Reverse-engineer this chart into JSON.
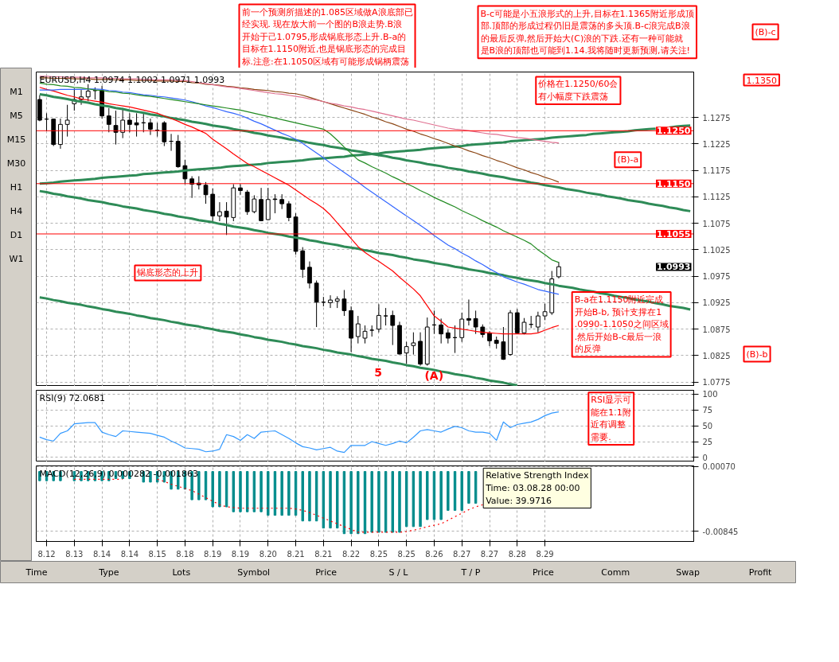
{
  "chart_data": [
    {
      "type": "other",
      "annotations": [
        "前一个预测所描述的1.085区域做A浪底部已经实现. 现在放大前一个图的B浪走势.B浪开始于己1.0795,形成锅底形态上升.B-a的目标在1.1150附近,也是锅底形态的完成目标.注意:在1.1050区域有可能形成锅柄震荡",
        "B-c可能是小五浪形式的上升,目标在1.1365附近形成顶部.顶部的形成过程仍旧是震荡的多头顶.B-c浪完成B浪的最后反弹,然后开始大(C)浪的下跌.还有一种可能就是B浪的顶部也可能到1.14.我将随时更新预测,请关注!",
        "(B)-c"
      ]
    },
    {
      "type": "other",
      "annotations": [
        "M1",
        "M5",
        "M15",
        "M30",
        "H1",
        "H4",
        "D1",
        "W1"
      ]
    },
    {
      "type": "candlestick",
      "title": "EURUSD,H4  1.0974 1.1002 1.0971 1.0993",
      "categories": [
        null,
        "8.12",
        null,
        null,
        null,
        "8.13",
        null,
        null,
        null,
        "8.14",
        null,
        null,
        null,
        "8.14",
        null,
        null,
        null,
        "8.15",
        null,
        null,
        null,
        "8.18",
        null,
        null,
        null,
        "8.19",
        null,
        null,
        null,
        "8.19",
        null,
        null,
        null,
        "8.20",
        null,
        null,
        null,
        "8.21",
        null,
        null,
        null,
        "8.21",
        null,
        null,
        null,
        "8.22",
        null,
        null,
        null,
        "8.25",
        null,
        null,
        null,
        "8.25",
        null,
        null,
        null,
        "8.26",
        null,
        null,
        null,
        "8.27",
        null,
        null,
        null,
        "8.27",
        null,
        null,
        null,
        "8.28",
        null,
        null,
        null,
        "8.29",
        null,
        null,
        null,
        null,
        null,
        null,
        null,
        null,
        null,
        null,
        null,
        null,
        null,
        null,
        null,
        null,
        null,
        null,
        null,
        null,
        null
      ],
      "ohlc": [
        [
          1.1309,
          1.1317,
          1.1268,
          1.127
        ],
        [
          1.1272,
          1.1283,
          1.1249,
          1.1272
        ],
        [
          1.1272,
          1.1272,
          1.1221,
          1.1224
        ],
        [
          1.1224,
          1.1273,
          1.1216,
          1.1262
        ],
        [
          1.1262,
          1.1299,
          1.1239,
          1.127
        ],
        [
          1.1301,
          1.133,
          1.1288,
          1.1309
        ],
        [
          1.1309,
          1.1327,
          1.1299,
          1.1314
        ],
        [
          1.1314,
          1.1338,
          1.1306,
          1.1325
        ],
        [
          1.1326,
          1.1332,
          1.1309,
          1.1326
        ],
        [
          1.1326,
          1.1335,
          1.1273,
          1.1278
        ],
        [
          1.1278,
          1.1293,
          1.1247,
          1.1262
        ],
        [
          1.126,
          1.1288,
          1.1224,
          1.1247
        ],
        [
          1.1247,
          1.1293,
          1.1236,
          1.127
        ],
        [
          1.127,
          1.1283,
          1.1247,
          1.1262
        ],
        [
          1.1265,
          1.1283,
          1.1239,
          1.1261
        ],
        [
          1.1265,
          1.1283,
          1.1247,
          1.1265
        ],
        [
          1.1265,
          1.1273,
          1.1242,
          1.1253
        ],
        [
          1.1251,
          1.1265,
          1.1239,
          1.1251
        ],
        [
          1.1265,
          1.1268,
          1.1221,
          1.1229
        ],
        [
          1.123,
          1.1244,
          1.1212,
          1.123
        ],
        [
          1.123,
          1.1242,
          1.118,
          1.1182
        ],
        [
          1.1184,
          1.1195,
          1.1149,
          1.1159
        ],
        [
          1.1159,
          1.1164,
          1.1123,
          1.1149
        ],
        [
          1.1151,
          1.1164,
          1.1139,
          1.1148
        ],
        [
          1.1147,
          1.1153,
          1.1112,
          1.1129
        ],
        [
          1.113,
          1.1141,
          1.1076,
          1.1089
        ],
        [
          1.1089,
          1.1115,
          1.1079,
          1.1097
        ],
        [
          1.1098,
          1.1115,
          1.1053,
          1.1087
        ],
        [
          1.1086,
          1.1149,
          1.1079,
          1.1142
        ],
        [
          1.1142,
          1.1149,
          1.1129,
          1.1137
        ],
        [
          1.1134,
          1.1138,
          1.1091,
          1.1097
        ],
        [
          1.1097,
          1.1128,
          1.1094,
          1.1121
        ],
        [
          1.112,
          1.1142,
          1.1079,
          1.108
        ],
        [
          1.1082,
          1.1142,
          1.1081,
          1.112
        ],
        [
          1.1121,
          1.113,
          1.1094,
          1.112
        ],
        [
          1.112,
          1.113,
          1.1102,
          1.1112
        ],
        [
          1.1112,
          1.1117,
          1.1079,
          1.1086
        ],
        [
          1.1087,
          1.1094,
          1.1016,
          1.1022
        ],
        [
          1.1023,
          1.103,
          1.0972,
          1.0988
        ],
        [
          1.0992,
          1.1003,
          1.0952,
          1.0962
        ],
        [
          1.0962,
          1.0967,
          1.0879,
          1.0926
        ],
        [
          1.0926,
          1.0936,
          1.0918,
          1.0926
        ],
        [
          1.0925,
          1.0939,
          1.0915,
          1.093
        ],
        [
          1.0928,
          1.0937,
          1.0915,
          1.0932
        ],
        [
          1.0932,
          1.0949,
          1.09,
          1.091
        ],
        [
          1.091,
          1.0918,
          1.0832,
          1.0858
        ],
        [
          1.0861,
          1.09,
          1.0848,
          1.0885
        ],
        [
          1.0858,
          1.0882,
          1.0848,
          1.0871
        ],
        [
          1.0873,
          1.0882,
          1.0861,
          1.0873
        ],
        [
          1.0875,
          1.0922,
          1.0869,
          1.0901
        ],
        [
          1.09,
          1.0915,
          1.0882,
          1.09
        ],
        [
          1.0901,
          1.091,
          1.0845,
          1.0882
        ],
        [
          1.0882,
          1.0889,
          1.0827,
          1.0828
        ],
        [
          1.083,
          1.0851,
          1.0809,
          1.0842
        ],
        [
          1.0844,
          1.0869,
          1.0827,
          1.0849
        ],
        [
          1.0852,
          1.0869,
          1.0806,
          1.0809
        ],
        [
          1.0809,
          1.0897,
          1.0806,
          1.0879
        ],
        [
          1.0883,
          1.091,
          1.0866,
          1.0883
        ],
        [
          1.0883,
          1.0895,
          1.0848,
          1.0866
        ],
        [
          1.0868,
          1.0874,
          1.0848,
          1.0858
        ],
        [
          1.0859,
          1.0882,
          1.083,
          1.0859
        ],
        [
          1.0859,
          1.0906,
          1.0851,
          1.0894
        ],
        [
          1.0895,
          1.0931,
          1.0882,
          1.0892
        ],
        [
          1.0895,
          1.091,
          1.0866,
          1.0879
        ],
        [
          1.0879,
          1.0884,
          1.0859,
          1.0865
        ],
        [
          1.0868,
          1.0871,
          1.0843,
          1.0853
        ],
        [
          1.0854,
          1.0861,
          1.0838,
          1.0848
        ],
        [
          1.0851,
          1.0879,
          1.0817,
          1.0818
        ],
        [
          1.0827,
          1.0911,
          1.0825,
          1.0906
        ],
        [
          1.0906,
          1.0913,
          1.0866,
          1.0868
        ],
        [
          1.0868,
          1.0896,
          1.0865,
          1.0888
        ],
        [
          1.0884,
          1.09,
          1.0877,
          1.0884
        ],
        [
          1.0879,
          1.0908,
          1.0869,
          1.09
        ],
        [
          1.09,
          1.0923,
          1.0892,
          1.0908
        ],
        [
          1.0906,
          1.0985,
          1.0902,
          1.097
        ],
        [
          1.0974,
          1.1002,
          1.0971,
          1.0993
        ],
        null,
        null,
        null,
        null,
        null,
        null,
        null,
        null,
        null,
        null,
        null,
        null,
        null,
        null,
        null,
        null,
        null,
        null,
        null
      ],
      "ylim": [
        1.0767,
        1.1361
      ],
      "yticks": [
        1.0775,
        1.0825,
        1.0875,
        1.0925,
        1.0975,
        1.1025,
        1.1075,
        1.1125,
        1.1175,
        1.1225,
        1.1275
      ],
      "grid": true,
      "tick_labels": "y",
      "series": [
        {
          "type": "line",
          "color": "#2e8b57",
          "values": [
            1.1319,
            1.1317,
            1.1314,
            1.1312,
            1.131,
            1.1307,
            1.1305,
            1.1303,
            1.13,
            1.1298,
            1.1296,
            1.1293,
            1.1291,
            1.1288,
            1.1286,
            1.1284,
            1.1281,
            1.1279,
            1.1277,
            1.1274,
            1.1272,
            1.127,
            1.1267,
            1.1265,
            1.1263,
            1.126,
            1.1258,
            1.1256,
            1.1253,
            1.1251,
            1.1249,
            1.1246,
            1.1244,
            1.1241,
            1.1239,
            1.1237,
            1.1234,
            1.1232,
            1.123,
            1.1227,
            1.1225,
            1.1223,
            1.122,
            1.1218,
            1.1216,
            1.1213,
            1.1211,
            1.1209,
            1.1206,
            1.1204,
            1.1202,
            1.1199,
            1.1197,
            1.1194,
            1.1192,
            1.119,
            1.1187,
            1.1185,
            1.1183,
            1.118,
            1.1178,
            1.1176,
            1.1173,
            1.1171,
            1.1169,
            1.1166,
            1.1164,
            1.1162,
            1.1159,
            1.1157,
            1.1155,
            1.1152,
            1.115,
            1.1147,
            1.1145,
            1.1143,
            1.114,
            1.1138,
            1.1136,
            1.1133,
            1.1131,
            1.1129,
            1.1126,
            1.1124,
            1.1122,
            1.1119,
            1.1117,
            1.1115,
            1.1112,
            1.111,
            1.1108,
            1.1105,
            1.1103,
            1.11,
            1.1098
          ]
        },
        {
          "type": "line",
          "color": "#2e8b57",
          "values": [
            1.115,
            1.1151,
            1.1152,
            1.1154,
            1.1155,
            1.1156,
            1.1157,
            1.1158,
            1.1159,
            1.1161,
            1.1162,
            1.1163,
            1.1164,
            1.1165,
            1.1166,
            1.1168,
            1.1169,
            1.117,
            1.1171,
            1.1172,
            1.1173,
            1.1175,
            1.1176,
            1.1177,
            1.1178,
            1.1179,
            1.118,
            1.1182,
            1.1183,
            1.1184,
            1.1185,
            1.1186,
            1.1187,
            1.1189,
            1.119,
            1.1191,
            1.1192,
            1.1193,
            1.1194,
            1.1196,
            1.1197,
            1.1198,
            1.1199,
            1.12,
            1.1201,
            1.1203,
            1.1204,
            1.1205,
            1.1206,
            1.1207,
            1.1209,
            1.121,
            1.1211,
            1.1212,
            1.1213,
            1.1214,
            1.1216,
            1.1217,
            1.1218,
            1.1219,
            1.122,
            1.1221,
            1.1223,
            1.1224,
            1.1225,
            1.1226,
            1.1227,
            1.1228,
            1.123,
            1.1231,
            1.1232,
            1.1233,
            1.1234,
            1.1235,
            1.1237,
            1.1238,
            1.1239,
            1.124,
            1.1241,
            1.1242,
            1.1244,
            1.1245,
            1.1246,
            1.1247,
            1.1248,
            1.1249,
            1.1251,
            1.1252,
            1.1253,
            1.1254,
            null,
            1.1256,
            1.1258,
            1.1259,
            1.126
          ]
        },
        {
          "type": "line",
          "color": "#2e8b57",
          "values": [
            1.1136,
            1.1134,
            1.1131,
            1.1129,
            1.1126,
            1.1124,
            1.1122,
            1.1119,
            1.1117,
            1.1115,
            1.1112,
            1.111,
            1.1107,
            1.1105,
            1.1103,
            1.11,
            1.1098,
            1.1096,
            1.1093,
            1.1091,
            1.1088,
            1.1086,
            1.1084,
            1.1081,
            1.1079,
            1.1077,
            1.1074,
            1.1072,
            1.1069,
            1.1067,
            1.1065,
            1.1062,
            1.106,
            1.1057,
            1.1055,
            1.1053,
            1.105,
            1.1048,
            1.1046,
            1.1043,
            1.1041,
            1.1038,
            1.1036,
            1.1034,
            1.1031,
            1.1029,
            1.1027,
            1.1024,
            1.1022,
            1.1019,
            1.1017,
            1.1015,
            1.1012,
            1.101,
            1.1007,
            1.1005,
            1.1003,
            1.1,
            1.0998,
            1.0996,
            1.0993,
            1.0991,
            1.0988,
            1.0986,
            1.0984,
            1.0981,
            1.0979,
            1.0977,
            1.0974,
            1.0972,
            1.0969,
            1.0967,
            1.0965,
            1.0962,
            1.096,
            1.0957,
            1.0955,
            1.0953,
            1.095,
            1.0948,
            1.0946,
            1.0943,
            1.0941,
            1.0938,
            1.0936,
            1.0934,
            1.0931,
            1.0929,
            1.0927,
            1.0924,
            1.0922,
            1.0919,
            1.0917,
            1.0915,
            1.0912
          ]
        },
        {
          "type": "line",
          "color": "#2e8b57",
          "values": [
            1.0935,
            1.0933,
            1.093,
            1.0928,
            1.0925,
            1.0923,
            1.0921,
            1.0918,
            1.0916,
            1.0913,
            1.0911,
            1.0908,
            1.0906,
            1.0904,
            1.0901,
            1.0899,
            1.0896,
            1.0894,
            1.0892,
            1.0889,
            1.0887,
            1.0884,
            1.0882,
            1.088,
            1.0877,
            1.0875,
            1.0872,
            1.087,
            1.0868,
            1.0865,
            1.0863,
            1.086,
            1.0858,
            1.0855,
            1.0853,
            1.0851,
            1.0848,
            1.0846,
            1.0843,
            1.0841,
            1.0839,
            1.0836,
            1.0834,
            1.0831,
            1.0829,
            1.0827,
            1.0824,
            1.0822,
            1.0819,
            1.0817,
            1.0815,
            1.0812,
            1.081,
            1.0807,
            1.0805,
            1.0802,
            1.08,
            1.0798,
            1.0795,
            1.0793,
            1.079,
            1.0788,
            1.0786,
            1.0783,
            1.0781,
            1.0778,
            1.0776,
            1.0774,
            1.0771,
            1.0769,
            null,
            null,
            null,
            null,
            null,
            null,
            null,
            null,
            null,
            null,
            null,
            null,
            null,
            null,
            null,
            null,
            null,
            null,
            null,
            null,
            null,
            null,
            null,
            null,
            null
          ]
        },
        {
          "type": "line",
          "color": "#ff0000",
          "values": [
            1.1332,
            1.1328,
            1.1325,
            1.1321,
            1.1317,
            1.1314,
            1.131,
            1.1308,
            1.1306,
            1.1304,
            1.1301,
            1.1299,
            1.1297,
            1.1295,
            1.1292,
            1.1289,
            1.1286,
            1.1283,
            1.1278,
            1.1273,
            1.1268,
            1.1262,
            1.1257,
            1.1251,
            1.1245,
            1.1234,
            1.1225,
            1.1216,
            1.1206,
            1.1197,
            1.1188,
            1.1182,
            1.1175,
            1.1168,
            1.1161,
            1.1154,
            1.1147,
            1.1138,
            1.1129,
            1.112,
            1.1112,
            1.1103,
            1.1091,
            1.1076,
            1.1061,
            1.1046,
            1.1031,
            1.102,
            1.1011,
            1.1003,
            1.0994,
            1.0985,
            1.0973,
            1.0962,
            1.0951,
            1.0938,
            1.0919,
            1.09,
            1.089,
            1.0879,
            1.0877,
            1.0875,
            1.0873,
            1.0871,
            1.0869,
            1.0868,
            1.0867,
            1.0866,
            1.0866,
            1.0866,
            1.0866,
            1.0866,
            1.0868,
            1.0873,
            1.0878,
            1.0882,
            null,
            null,
            null,
            null,
            null,
            null,
            null,
            null,
            null,
            null,
            null,
            null,
            null,
            null,
            null,
            null,
            null,
            null,
            null
          ]
        },
        {
          "type": "line",
          "color": "#3366ff",
          "values": [
            1.1327,
            1.1327,
            1.1327,
            1.1328,
            1.1328,
            1.1328,
            1.1328,
            1.1329,
            1.1329,
            1.1328,
            1.1326,
            1.1325,
            1.1323,
            1.1322,
            1.132,
            1.1318,
            1.1317,
            1.1315,
            1.1314,
            1.1312,
            1.131,
            1.1308,
            1.1305,
            1.1301,
            1.1297,
            1.1294,
            1.129,
            1.1286,
            1.1283,
            1.1279,
            1.1274,
            1.1268,
            1.1263,
            1.1257,
            1.1251,
            1.1245,
            1.124,
            1.1234,
            1.1226,
            1.1217,
            1.1208,
            1.1199,
            1.1189,
            1.118,
            1.1171,
            1.1162,
            1.1153,
            1.1143,
            1.1134,
            1.1125,
            1.1116,
            1.1107,
            1.1098,
            1.1089,
            1.108,
            1.1071,
            1.1062,
            1.1052,
            1.1043,
            1.1034,
            1.1027,
            1.1019,
            1.1012,
            1.1004,
            1.0997,
            1.0989,
            1.0982,
            1.0974,
            1.0969,
            1.0964,
            1.096,
            1.0955,
            1.095,
            1.0947,
            1.0944,
            1.0941,
            null,
            null,
            null,
            null,
            null,
            null,
            null,
            null,
            null,
            null,
            null,
            null,
            null,
            null,
            null,
            null,
            null,
            null,
            null
          ]
        },
        {
          "type": "line",
          "color": "#228b22",
          "values": [
            1.134,
            1.1338,
            1.1337,
            1.1335,
            1.1334,
            1.1332,
            1.1331,
            1.1329,
            1.1327,
            1.1326,
            1.1324,
            1.1323,
            1.1321,
            1.132,
            1.1318,
            1.1316,
            1.1315,
            1.1313,
            1.1311,
            1.1309,
            1.1307,
            1.1305,
            1.1303,
            1.1301,
            1.1299,
            1.1297,
            1.1295,
            1.1293,
            1.1291,
            1.1289,
            1.1286,
            1.1283,
            1.128,
            1.1277,
            1.1274,
            1.1271,
            1.1268,
            1.1265,
            1.1262,
            1.1259,
            1.1256,
            1.1253,
            1.1244,
            1.1232,
            1.1219,
            1.1207,
            1.1195,
            1.1189,
            1.1182,
            1.1176,
            1.117,
            1.1163,
            1.1157,
            1.115,
            1.1144,
            1.1137,
            1.1131,
            1.1124,
            1.1118,
            1.1112,
            1.1106,
            1.1099,
            1.1093,
            1.1087,
            1.108,
            1.1074,
            1.1068,
            1.1061,
            1.1055,
            1.1049,
            1.1043,
            1.1036,
            1.1025,
            1.1016,
            1.1006,
            1.1001,
            null,
            null,
            null,
            null,
            null,
            null,
            null,
            null,
            null,
            null,
            null,
            null,
            null,
            null,
            null,
            null,
            null,
            null,
            null
          ]
        },
        {
          "type": "line",
          "color": "#8b4513",
          "values": [
            1.135,
            1.135,
            1.1349,
            1.1349,
            1.1349,
            1.1348,
            1.1348,
            1.1348,
            1.1347,
            1.1347,
            1.1347,
            1.1346,
            1.1346,
            1.1346,
            1.1345,
            1.1345,
            1.1345,
            1.1344,
            1.1344,
            1.1344,
            1.1343,
            1.1343,
            1.1341,
            1.134,
            1.1338,
            1.1337,
            1.1336,
            1.1334,
            1.1333,
            1.1331,
            1.133,
            1.1328,
            1.1327,
            1.1326,
            1.1324,
            1.1323,
            1.1321,
            1.132,
            1.1317,
            1.1313,
            1.1309,
            1.1305,
            1.1301,
            1.1297,
            1.1293,
            1.1289,
            1.1285,
            1.1281,
            1.1276,
            1.1272,
            1.1267,
            1.1263,
            1.1258,
            1.1253,
            1.1249,
            1.1244,
            1.124,
            1.1235,
            1.1231,
            1.1226,
            1.1221,
            1.1217,
            1.1212,
            1.1208,
            1.1203,
            1.1199,
            1.1194,
            1.119,
            1.1185,
            1.118,
            1.1176,
            1.1171,
            1.1167,
            1.1162,
            1.1158,
            1.1153,
            null,
            null,
            null,
            null,
            null,
            null,
            null,
            null,
            null,
            null,
            null,
            null,
            null,
            null,
            null,
            null,
            null,
            null,
            null
          ]
        },
        {
          "type": "line",
          "color": "#e07090",
          "values": [
            1.1353,
            1.1353,
            1.1352,
            1.1352,
            1.1351,
            1.1351,
            1.1351,
            1.135,
            1.135,
            1.135,
            1.1349,
            1.1349,
            1.1348,
            1.1348,
            1.1348,
            1.1347,
            1.1347,
            1.1346,
            1.1346,
            1.1346,
            1.1345,
            1.1345,
            1.1343,
            1.1341,
            1.1339,
            1.1337,
            1.1335,
            1.1333,
            1.1332,
            1.133,
            1.1328,
            1.1326,
            1.1324,
            1.1322,
            1.132,
            1.1319,
            1.1317,
            1.1315,
            1.1313,
            1.131,
            1.1308,
            1.1305,
            1.1302,
            1.13,
            1.1297,
            1.1295,
            1.1292,
            1.129,
            1.1287,
            1.1284,
            1.1281,
            1.1278,
            1.1275,
            1.1272,
            1.127,
            1.1267,
            1.1264,
            1.1261,
            1.1258,
            1.1255,
            1.1253,
            1.1252,
            1.125,
            1.1248,
            1.1246,
            1.1244,
            1.1243,
            1.1241,
            1.1239,
            1.1237,
            1.1236,
            1.1234,
            1.1232,
            1.123,
            1.1228,
            1.1227,
            null,
            null,
            null,
            null,
            null,
            null,
            null,
            null,
            null,
            null,
            null,
            null,
            null,
            null,
            null,
            null,
            null,
            null,
            null
          ]
        }
      ],
      "ref_lines": [
        {
          "axis": "y",
          "value": 1.125,
          "label": "1.1250",
          "color": "#ff0000"
        },
        {
          "axis": "y",
          "value": 1.115,
          "label": "1.1150",
          "color": "#ff0000"
        },
        {
          "axis": "y",
          "value": 1.1055,
          "label": "1.1055",
          "color": "#ff0000"
        }
      ],
      "annotations": [
        "价格在1.1250/60会有小幅度下跌震荡",
        "(B)-a",
        "锅底形态的上升",
        "B-a在1.1150附近完成开始B-b, 预计支撑在1.0990-1.1050之间区域.然后开始B-c最后一浪的反弹",
        "5",
        "(A)",
        "1.0993"
      ]
    },
    {
      "type": "other",
      "annotations": [
        "1.1350",
        "(B)-b"
      ]
    },
    {
      "type": "line",
      "title": "RSI(9)  72.0681",
      "categories": [
        null,
        "8.12",
        null,
        null,
        null,
        "8.13",
        null,
        null,
        null,
        "8.14",
        null,
        null,
        null,
        "8.14",
        null,
        null,
        null,
        "8.15",
        null,
        null,
        null,
        "8.18",
        null,
        null,
        null,
        "8.19",
        null,
        null,
        null,
        "8.19",
        null,
        null,
        null,
        "8.20",
        null,
        null,
        null,
        "8.21",
        null,
        null,
        null,
        "8.21",
        null,
        null,
        null,
        "8.22",
        null,
        null,
        null,
        "8.25",
        null,
        null,
        null,
        "8.25",
        null,
        null,
        null,
        "8.26",
        null,
        null,
        null,
        "8.27",
        null,
        null,
        null,
        "8.27",
        null,
        null,
        null,
        "8.28",
        null,
        null,
        null,
        "8.29",
        null,
        null,
        null,
        null,
        null,
        null,
        null,
        null,
        null,
        null,
        null,
        null,
        null,
        null,
        null,
        null,
        null,
        null,
        null,
        null,
        null
      ],
      "series": [
        {
          "color": "#3399ff",
          "values": [
            32,
            28,
            26,
            38,
            42,
            53,
            54,
            55,
            55,
            40,
            36,
            33,
            42,
            41,
            40,
            39,
            38,
            35,
            32,
            26,
            21,
            15,
            14,
            13,
            9,
            10,
            13,
            36,
            33,
            27,
            36,
            30,
            40,
            41,
            42,
            36,
            30,
            23,
            17,
            15,
            12,
            14,
            16,
            10,
            8,
            19,
            19,
            19,
            25,
            22,
            19,
            22,
            26,
            23,
            32,
            42,
            44,
            42,
            40,
            45,
            49,
            47,
            42,
            40,
            40,
            38,
            27,
            56,
            47,
            52,
            54,
            56,
            60,
            66,
            70,
            72,
            null,
            null,
            null,
            null,
            null,
            null,
            null,
            null,
            null,
            null,
            null,
            null,
            null,
            null,
            null,
            null,
            null,
            null,
            null
          ]
        }
      ],
      "ylim": [
        -7,
        106
      ],
      "yticks": [
        0,
        25,
        50,
        75,
        100
      ],
      "grid": true,
      "tick_labels": "y",
      "annotations": [
        "RSI显示可能在1.1附近有调整需要."
      ]
    },
    {
      "type": "bar",
      "title": "MACD(12,26,9)  0.000282  -0.001863",
      "categories": [
        null,
        "8.12",
        null,
        null,
        null,
        "8.13",
        null,
        null,
        null,
        "8.14",
        null,
        null,
        null,
        "8.14",
        null,
        null,
        null,
        "8.15",
        null,
        null,
        null,
        "8.18",
        null,
        null,
        null,
        "8.19",
        null,
        null,
        null,
        "8.19",
        null,
        null,
        null,
        "8.20",
        null,
        null,
        null,
        "8.21",
        null,
        null,
        null,
        "8.21",
        null,
        null,
        null,
        "8.22",
        null,
        null,
        null,
        "8.25",
        null,
        null,
        null,
        "8.25",
        null,
        null,
        null,
        "8.26",
        null,
        null,
        null,
        "8.27",
        null,
        null,
        null,
        "8.27",
        null,
        null,
        null,
        "8.28",
        null,
        null,
        null,
        "8.29",
        null,
        null,
        null,
        null,
        null,
        null,
        null,
        null,
        null,
        null,
        null,
        null,
        null,
        null,
        null,
        null,
        null,
        null,
        null,
        null,
        null
      ],
      "series": [
        {
          "type": "bar",
          "color": "#008b8b",
          "values": [
            -0.0013,
            -0.0013,
            -0.0013,
            -0.0013,
            null,
            -0.0013,
            -0.0013,
            -0.0013,
            -0.0013,
            -0.0013,
            -0.0013,
            -0.001,
            -0.001,
            -0.001,
            null,
            -0.0015,
            -0.0015,
            -0.0015,
            -0.0015,
            -0.0025,
            -0.0025,
            -0.0025,
            -0.004,
            -0.004,
            -0.004,
            -0.005,
            -0.005,
            -0.005,
            -0.0057,
            -0.0057,
            -0.0057,
            -0.0057,
            -0.0057,
            -0.0062,
            -0.0062,
            -0.0062,
            -0.0062,
            -0.0062,
            -0.007,
            -0.007,
            -0.007,
            -0.008,
            -0.008,
            -0.008,
            -0.0088,
            -0.0088,
            -0.0088,
            -0.0088,
            -0.0086,
            -0.0086,
            -0.0086,
            -0.0086,
            -0.0086,
            -0.0078,
            -0.0078,
            -0.0078,
            -0.0068,
            -0.0068,
            -0.0068,
            -0.0055,
            -0.0055,
            -0.0055,
            -0.0045,
            -0.0045,
            null,
            null,
            null,
            null,
            null,
            null,
            null,
            null,
            null,
            null,
            null,
            null,
            null,
            null,
            null,
            null,
            null,
            null,
            null,
            null,
            null,
            null,
            null,
            null,
            null,
            null,
            null,
            null,
            null,
            null,
            null
          ]
        },
        {
          "type": "line",
          "color": "#ff0000",
          "line_style": "dotted",
          "values": [
            null,
            null,
            null,
            null,
            null,
            -0.0011,
            -0.0011,
            -0.0011,
            -0.0011,
            -0.0011,
            -0.0011,
            -0.0011,
            -0.0011,
            null,
            null,
            null,
            null,
            -0.0011,
            -0.0014,
            -0.0018,
            -0.0021,
            -0.0024,
            -0.0027,
            -0.0032,
            -0.0037,
            -0.0042,
            -0.0047,
            -0.005,
            -0.0051,
            -0.0052,
            -0.0052,
            -0.0052,
            -0.0052,
            -0.0052,
            -0.0052,
            -0.0052,
            -0.0052,
            -0.0053,
            -0.0055,
            -0.0058,
            -0.0062,
            -0.0066,
            -0.007,
            -0.0074,
            -0.0078,
            -0.0082,
            -0.0086,
            -0.0086,
            -0.0086,
            -0.0086,
            -0.0086,
            -0.0086,
            -0.0086,
            -0.0085,
            -0.0083,
            -0.0081,
            -0.0078,
            -0.0076,
            -0.0074,
            -0.0069,
            -0.0064,
            -0.0059,
            -0.0054,
            -0.005,
            -0.0047,
            null,
            null,
            null,
            null,
            null,
            null,
            null,
            null,
            null,
            null,
            null,
            null,
            null,
            null,
            null,
            null,
            null,
            null,
            null,
            null,
            null,
            null,
            null,
            null,
            null,
            null,
            null,
            null,
            null,
            null
          ]
        }
      ],
      "ylim": [
        -0.0099,
        0.0008
      ],
      "yticks": [
        {
          "value": 0.0007,
          "label": "0.00070"
        },
        -0.00845
      ],
      "grid": true,
      "annotations": [
        "Relative Strength Index\nTime: 03.08.28 00:00\nValue: 39.9716"
      ]
    },
    {
      "type": "other",
      "annotations": [
        "Time",
        "Type",
        "Lots",
        "Symbol",
        "Price",
        "S / L",
        "T / P",
        "Price",
        "Comm",
        "Swap",
        "Profit"
      ]
    }
  ]
}
